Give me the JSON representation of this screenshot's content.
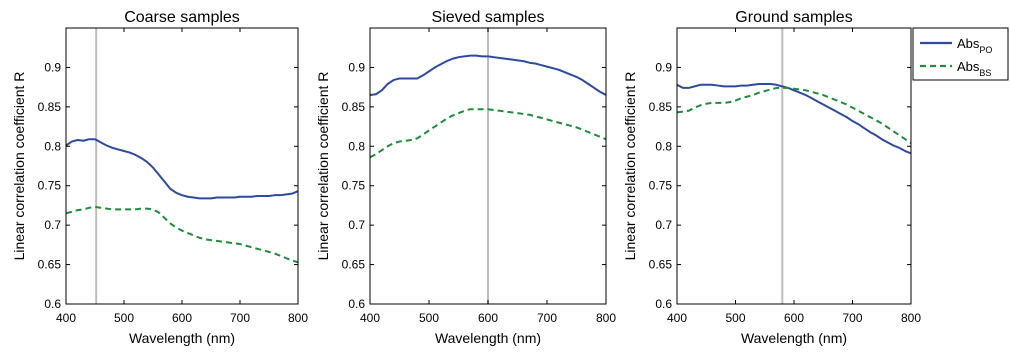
{
  "figure": {
    "legend_entries": [
      {
        "name": "Abs",
        "subscript": "PO",
        "color": "#2e4aa0",
        "style": "solid"
      },
      {
        "name": "Abs",
        "subscript": "BS",
        "color": "#1e8c3a",
        "style": "dashed"
      }
    ]
  },
  "chart_data": [
    {
      "type": "line",
      "title": "Coarse samples",
      "xlabel": "Wavelength (nm)",
      "ylabel": "Linear correlation coefficient R",
      "xlim": [
        400,
        800
      ],
      "ylim": [
        0.6,
        0.95
      ],
      "xticks": [
        400,
        500,
        600,
        700,
        800
      ],
      "yticks": [
        0.6,
        0.65,
        0.7,
        0.75,
        0.8,
        0.85,
        0.9
      ],
      "xtick_labels": [
        "400",
        "500",
        "600",
        "700",
        "800"
      ],
      "ytick_labels": [
        "0.6",
        "0.65",
        "0.7",
        "0.75",
        "0.8",
        "0.85",
        "0.9"
      ],
      "vline": 452,
      "series": [
        {
          "name": "AbsPO",
          "color": "#2e4aa0",
          "style": "solid",
          "x": [
            400,
            410,
            420,
            430,
            440,
            450,
            460,
            470,
            480,
            490,
            500,
            510,
            520,
            530,
            540,
            550,
            560,
            570,
            580,
            590,
            600,
            610,
            620,
            630,
            640,
            650,
            660,
            670,
            680,
            690,
            700,
            710,
            720,
            730,
            740,
            750,
            760,
            770,
            780,
            790,
            800
          ],
          "y": [
            0.801,
            0.806,
            0.808,
            0.807,
            0.809,
            0.809,
            0.805,
            0.801,
            0.798,
            0.796,
            0.794,
            0.792,
            0.789,
            0.785,
            0.78,
            0.773,
            0.764,
            0.755,
            0.746,
            0.741,
            0.738,
            0.736,
            0.735,
            0.734,
            0.734,
            0.734,
            0.735,
            0.735,
            0.735,
            0.735,
            0.736,
            0.736,
            0.736,
            0.737,
            0.737,
            0.737,
            0.738,
            0.738,
            0.739,
            0.74,
            0.743
          ]
        },
        {
          "name": "AbsBS",
          "color": "#1e8c3a",
          "style": "dashed",
          "x": [
            400,
            410,
            420,
            430,
            440,
            450,
            460,
            470,
            480,
            490,
            500,
            510,
            520,
            530,
            540,
            550,
            560,
            570,
            580,
            590,
            600,
            610,
            620,
            630,
            640,
            650,
            660,
            670,
            680,
            690,
            700,
            710,
            720,
            730,
            740,
            750,
            760,
            770,
            780,
            790,
            800
          ],
          "y": [
            0.715,
            0.717,
            0.719,
            0.72,
            0.722,
            0.723,
            0.722,
            0.721,
            0.72,
            0.72,
            0.72,
            0.72,
            0.72,
            0.721,
            0.721,
            0.72,
            0.716,
            0.709,
            0.702,
            0.697,
            0.693,
            0.69,
            0.687,
            0.684,
            0.682,
            0.681,
            0.68,
            0.679,
            0.678,
            0.677,
            0.676,
            0.674,
            0.672,
            0.67,
            0.668,
            0.666,
            0.664,
            0.661,
            0.658,
            0.655,
            0.653
          ]
        }
      ]
    },
    {
      "type": "line",
      "title": "Sieved samples",
      "xlabel": "Wavelength (nm)",
      "ylabel": "Linear correlation coefficient R",
      "xlim": [
        400,
        800
      ],
      "ylim": [
        0.6,
        0.95
      ],
      "xticks": [
        400,
        500,
        600,
        700,
        800
      ],
      "yticks": [
        0.6,
        0.65,
        0.7,
        0.75,
        0.8,
        0.85,
        0.9
      ],
      "xtick_labels": [
        "400",
        "500",
        "600",
        "700",
        "800"
      ],
      "ytick_labels": [
        "0.6",
        "0.65",
        "0.7",
        "0.75",
        "0.8",
        "0.85",
        "0.9"
      ],
      "vline": 600,
      "series": [
        {
          "name": "AbsPO",
          "color": "#2e4aa0",
          "style": "solid",
          "x": [
            400,
            410,
            420,
            430,
            440,
            450,
            460,
            470,
            480,
            490,
            500,
            510,
            520,
            530,
            540,
            550,
            560,
            570,
            580,
            590,
            600,
            610,
            620,
            630,
            640,
            650,
            660,
            670,
            680,
            690,
            700,
            710,
            720,
            730,
            740,
            750,
            760,
            770,
            780,
            790,
            800
          ],
          "y": [
            0.865,
            0.866,
            0.871,
            0.879,
            0.884,
            0.886,
            0.886,
            0.886,
            0.886,
            0.89,
            0.895,
            0.9,
            0.904,
            0.908,
            0.911,
            0.913,
            0.914,
            0.915,
            0.915,
            0.914,
            0.914,
            0.913,
            0.912,
            0.911,
            0.91,
            0.909,
            0.908,
            0.906,
            0.905,
            0.903,
            0.901,
            0.899,
            0.897,
            0.894,
            0.891,
            0.888,
            0.884,
            0.879,
            0.874,
            0.869,
            0.865
          ]
        },
        {
          "name": "AbsBS",
          "color": "#1e8c3a",
          "style": "dashed",
          "x": [
            400,
            410,
            420,
            430,
            440,
            450,
            460,
            470,
            480,
            490,
            500,
            510,
            520,
            530,
            540,
            550,
            560,
            570,
            580,
            590,
            600,
            610,
            620,
            630,
            640,
            650,
            660,
            670,
            680,
            690,
            700,
            710,
            720,
            730,
            740,
            750,
            760,
            770,
            780,
            790,
            800
          ],
          "y": [
            0.786,
            0.79,
            0.795,
            0.8,
            0.804,
            0.806,
            0.807,
            0.808,
            0.81,
            0.815,
            0.82,
            0.825,
            0.83,
            0.835,
            0.839,
            0.842,
            0.845,
            0.847,
            0.847,
            0.847,
            0.847,
            0.846,
            0.845,
            0.844,
            0.843,
            0.842,
            0.841,
            0.84,
            0.838,
            0.836,
            0.834,
            0.832,
            0.83,
            0.828,
            0.826,
            0.824,
            0.821,
            0.818,
            0.815,
            0.812,
            0.809
          ]
        }
      ]
    },
    {
      "type": "line",
      "title": "Ground samples",
      "xlabel": "Wavelength (nm)",
      "ylabel": "Linear correlation coefficient R",
      "xlim": [
        400,
        800
      ],
      "ylim": [
        0.6,
        0.95
      ],
      "xticks": [
        400,
        500,
        600,
        700,
        800
      ],
      "yticks": [
        0.6,
        0.65,
        0.7,
        0.75,
        0.8,
        0.85,
        0.9
      ],
      "xtick_labels": [
        "400",
        "500",
        "600",
        "700",
        "800"
      ],
      "ytick_labels": [
        "0.6",
        "0.65",
        "0.7",
        "0.75",
        "0.8",
        "0.85",
        "0.9"
      ],
      "vline": 580,
      "series": [
        {
          "name": "AbsPO",
          "color": "#2e4aa0",
          "style": "solid",
          "x": [
            400,
            410,
            420,
            430,
            440,
            450,
            460,
            470,
            480,
            490,
            500,
            510,
            520,
            530,
            540,
            550,
            560,
            570,
            580,
            590,
            600,
            610,
            620,
            630,
            640,
            650,
            660,
            670,
            680,
            690,
            700,
            710,
            720,
            730,
            740,
            750,
            760,
            770,
            780,
            790,
            800
          ],
          "y": [
            0.878,
            0.874,
            0.874,
            0.876,
            0.878,
            0.878,
            0.878,
            0.877,
            0.876,
            0.876,
            0.876,
            0.877,
            0.877,
            0.878,
            0.879,
            0.879,
            0.879,
            0.878,
            0.876,
            0.874,
            0.871,
            0.868,
            0.865,
            0.861,
            0.857,
            0.853,
            0.849,
            0.845,
            0.841,
            0.837,
            0.832,
            0.828,
            0.823,
            0.818,
            0.814,
            0.809,
            0.805,
            0.801,
            0.798,
            0.794,
            0.791
          ]
        },
        {
          "name": "AbsBS",
          "color": "#1e8c3a",
          "style": "dashed",
          "x": [
            400,
            410,
            420,
            430,
            440,
            450,
            460,
            470,
            480,
            490,
            500,
            510,
            520,
            530,
            540,
            550,
            560,
            570,
            580,
            590,
            600,
            610,
            620,
            630,
            640,
            650,
            660,
            670,
            680,
            690,
            700,
            710,
            720,
            730,
            740,
            750,
            760,
            770,
            780,
            790,
            800
          ],
          "y": [
            0.843,
            0.844,
            0.845,
            0.849,
            0.852,
            0.854,
            0.855,
            0.855,
            0.855,
            0.856,
            0.858,
            0.861,
            0.863,
            0.865,
            0.868,
            0.87,
            0.872,
            0.874,
            0.874,
            0.874,
            0.873,
            0.872,
            0.871,
            0.869,
            0.867,
            0.865,
            0.862,
            0.859,
            0.856,
            0.853,
            0.849,
            0.845,
            0.841,
            0.837,
            0.833,
            0.829,
            0.824,
            0.819,
            0.814,
            0.809,
            0.804
          ]
        }
      ]
    }
  ]
}
